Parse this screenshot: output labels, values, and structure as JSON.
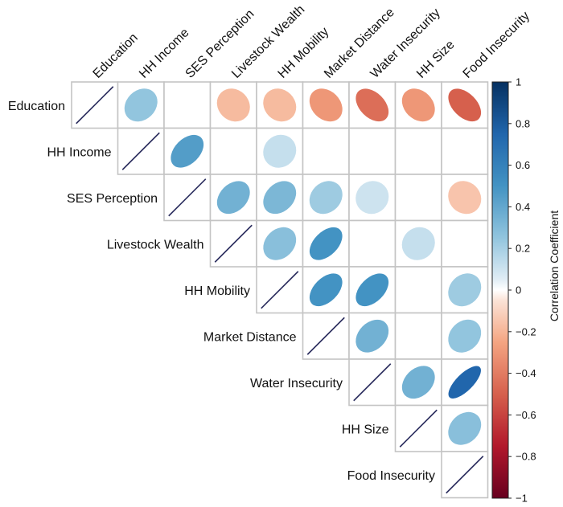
{
  "chart_data": {
    "type": "correlation-matrix",
    "display": "upper-triangle ellipses",
    "variables": [
      "Education",
      "HH Income",
      "SES Perception",
      "Livestock Wealth",
      "HH Mobility",
      "Market Distance",
      "Water Insecurity",
      "HH Size",
      "Food Insecurity"
    ],
    "matrix": [
      [
        1,
        0.25,
        0,
        -0.18,
        -0.18,
        -0.3,
        -0.45,
        -0.3,
        -0.5
      ],
      [
        0.25,
        1,
        0.45,
        0,
        0.12,
        0,
        0,
        0,
        0
      ],
      [
        0,
        0.45,
        1,
        0.35,
        0.32,
        0.22,
        0.1,
        0,
        -0.15
      ],
      [
        -0.18,
        0,
        0.35,
        1,
        0.28,
        0.5,
        0,
        0.12,
        0
      ],
      [
        -0.18,
        0.12,
        0.32,
        0.28,
        1,
        0.5,
        0.5,
        0,
        0.22
      ],
      [
        -0.3,
        0,
        0.22,
        0.5,
        0.5,
        1,
        0.35,
        0,
        0.25
      ],
      [
        -0.45,
        0,
        0.1,
        0,
        0.5,
        0.35,
        1,
        0.35,
        0.75
      ],
      [
        -0.3,
        0,
        0,
        0.12,
        0,
        0,
        0.35,
        1,
        0.28
      ],
      [
        -0.5,
        0,
        -0.15,
        0,
        0.22,
        0.25,
        0.75,
        0.28,
        1
      ]
    ],
    "colorbar": {
      "title": "Correlation Coefficient",
      "range": [
        -1,
        1
      ],
      "ticks": [
        1,
        0.8,
        0.6,
        0.4,
        0.2,
        0,
        -0.2,
        -0.4,
        -0.6,
        -0.8,
        -1
      ],
      "tick_labels": [
        "1",
        "0.8",
        "0.6",
        "0.4",
        "0.2",
        "0",
        "−0.2",
        "−0.4",
        "−0.6",
        "−0.8",
        "−1"
      ]
    },
    "colors": {
      "negative_end": "#67001f",
      "neutral": "#ffffff",
      "positive_end": "#053061",
      "grid": "#c4c4c4",
      "diagonal_line": "#2b2d5e"
    }
  }
}
